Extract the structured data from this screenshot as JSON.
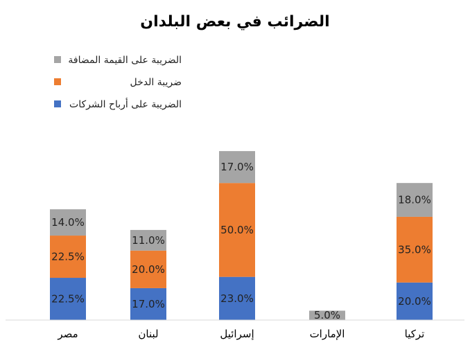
{
  "chart_data": {
    "type": "bar",
    "stacked": true,
    "title": "الضرائب في بعض البلدان",
    "xlabel": "",
    "ylabel": "",
    "ylim": [
      0,
      100
    ],
    "grid": false,
    "legend_position": "top-left",
    "categories": [
      "مصر",
      "لبنان",
      "إسرائيل",
      "الإمارات",
      "تركيا"
    ],
    "series": [
      {
        "name": "الضريبة على أرباح الشركات",
        "color": "#4472C4",
        "values": [
          22.5,
          17.0,
          23.0,
          0,
          20.0
        ],
        "labels": [
          "22.5%",
          "17.0%",
          "23.0%",
          "",
          "20.0%"
        ]
      },
      {
        "name": "ضريبة الدخل",
        "color": "#ED7D31",
        "values": [
          22.5,
          20.0,
          50.0,
          0,
          35.0
        ],
        "labels": [
          "22.5%",
          "20.0%",
          "50.0%",
          "",
          "35.0%"
        ]
      },
      {
        "name": "الضريبة على القيمة المضافة",
        "color": "#A5A5A5",
        "values": [
          14.0,
          11.0,
          17.0,
          5.0,
          18.0
        ],
        "labels": [
          "14.0%",
          "11.0%",
          "17.0%",
          "5.0%",
          "18.0%"
        ]
      }
    ]
  }
}
